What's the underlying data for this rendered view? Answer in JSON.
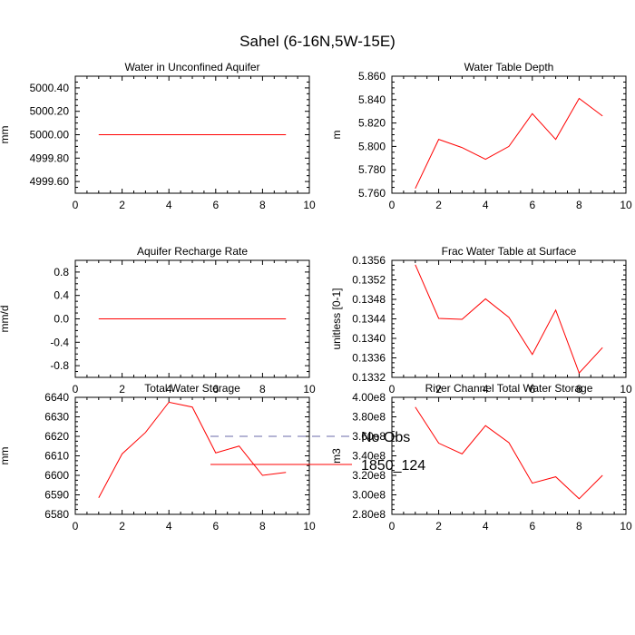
{
  "figure": {
    "title": "Sahel (6-16N,5W-15E)",
    "line_color": "#ff0000",
    "obs_color": "#6a6aa8"
  },
  "legend": {
    "items": [
      {
        "label": "No Obs",
        "style": "dashed",
        "color": "#6a6aa8"
      },
      {
        "label": "1850_124",
        "style": "solid",
        "color": "#ff0000"
      }
    ]
  },
  "chart_data": [
    {
      "type": "line",
      "title": "Water in Unconfined Aquifer",
      "ylabel": "mm",
      "xlim": [
        0,
        10
      ],
      "xticks": [
        0,
        2,
        4,
        6,
        8,
        10
      ],
      "xtick_labels": [
        "0",
        "2",
        "4",
        "6",
        "8",
        "10"
      ],
      "ylim": [
        4999.5,
        5000.5
      ],
      "yticks": [
        4999.6,
        4999.8,
        5000.0,
        5000.2,
        5000.4
      ],
      "ytick_labels": [
        "4999.60",
        "4999.80",
        "5000.00",
        "5000.20",
        "5000.40"
      ],
      "x": [
        1,
        2,
        3,
        4,
        5,
        6,
        7,
        8,
        9
      ],
      "series": [
        {
          "name": "1850_124",
          "values": [
            5000,
            5000,
            5000,
            5000,
            5000,
            5000,
            5000,
            5000,
            5000
          ]
        }
      ]
    },
    {
      "type": "line",
      "title": "Water Table Depth",
      "ylabel": "m",
      "xlim": [
        0,
        10
      ],
      "xticks": [
        0,
        2,
        4,
        6,
        8,
        10
      ],
      "xtick_labels": [
        "0",
        "2",
        "4",
        "6",
        "8",
        "10"
      ],
      "ylim": [
        5.76,
        5.86
      ],
      "yticks": [
        5.76,
        5.78,
        5.8,
        5.82,
        5.84,
        5.86
      ],
      "ytick_labels": [
        "5.760",
        "5.780",
        "5.800",
        "5.820",
        "5.840",
        "5.860"
      ],
      "x": [
        1,
        2,
        3,
        4,
        5,
        6,
        7,
        8,
        9
      ],
      "series": [
        {
          "name": "1850_124",
          "values": [
            5.764,
            5.806,
            5.799,
            5.789,
            5.8,
            5.828,
            5.806,
            5.841,
            5.826
          ]
        }
      ]
    },
    {
      "type": "line",
      "title": "Aquifer Recharge Rate",
      "ylabel": "mm/d",
      "xlim": [
        0,
        10
      ],
      "xticks": [
        0,
        2,
        4,
        6,
        8,
        10
      ],
      "xtick_labels": [
        "0",
        "2",
        "4",
        "6",
        "8",
        "10"
      ],
      "ylim": [
        -1.0,
        1.0
      ],
      "yticks": [
        -0.8,
        -0.4,
        0.0,
        0.4,
        0.8
      ],
      "ytick_labels": [
        "-0.8",
        "-0.4",
        "0.0",
        "0.4",
        "0.8"
      ],
      "x": [
        1,
        2,
        3,
        4,
        5,
        6,
        7,
        8,
        9
      ],
      "series": [
        {
          "name": "1850_124",
          "values": [
            0,
            0,
            0,
            0,
            0,
            0,
            0,
            0,
            0
          ]
        }
      ]
    },
    {
      "type": "line",
      "title": "Frac Water Table at Surface",
      "ylabel": "unitless [0-1]",
      "xlim": [
        0,
        10
      ],
      "xticks": [
        0,
        2,
        4,
        6,
        8,
        10
      ],
      "xtick_labels": [
        "0",
        "2",
        "4",
        "6",
        "8",
        "10"
      ],
      "ylim": [
        0.1332,
        0.1356
      ],
      "yticks": [
        0.1332,
        0.1336,
        0.134,
        0.1344,
        0.1348,
        0.1352,
        0.1356
      ],
      "ytick_labels": [
        "0.1332",
        "0.1336",
        "0.1340",
        "0.1344",
        "0.1348",
        "0.1352",
        "0.1356"
      ],
      "x": [
        1,
        2,
        3,
        4,
        5,
        6,
        7,
        8,
        9
      ],
      "series": [
        {
          "name": "1850_124",
          "values": [
            0.13551,
            0.13441,
            0.13439,
            0.13481,
            0.13443,
            0.13367,
            0.13458,
            0.13329,
            0.13381
          ]
        }
      ]
    },
    {
      "type": "line",
      "title": "Total Water Storage",
      "ylabel": "mm",
      "xlim": [
        0,
        10
      ],
      "xticks": [
        0,
        2,
        4,
        6,
        8,
        10
      ],
      "xtick_labels": [
        "0",
        "2",
        "4",
        "6",
        "8",
        "10"
      ],
      "ylim": [
        6580,
        6640
      ],
      "yticks": [
        6580,
        6590,
        6600,
        6610,
        6620,
        6630,
        6640
      ],
      "ytick_labels": [
        "6580",
        "6590",
        "6600",
        "6610",
        "6620",
        "6630",
        "6640"
      ],
      "x": [
        1,
        2,
        3,
        4,
        5,
        6,
        7,
        8,
        9
      ],
      "series": [
        {
          "name": "1850_124",
          "values": [
            6588.5,
            6611,
            6622,
            6637.5,
            6635,
            6611.5,
            6615,
            6600,
            6601.5
          ]
        }
      ]
    },
    {
      "type": "line",
      "title": "River Channel Total Water Storage",
      "ylabel": "m3",
      "xlim": [
        0,
        10
      ],
      "xticks": [
        0,
        2,
        4,
        6,
        8,
        10
      ],
      "xtick_labels": [
        "0",
        "2",
        "4",
        "6",
        "8",
        "10"
      ],
      "ylim": [
        280000000,
        400000000
      ],
      "yticks": [
        280000000,
        300000000,
        320000000,
        340000000,
        360000000,
        380000000,
        400000000
      ],
      "ytick_labels": [
        "2.80e8",
        "3.00e8",
        "3.20e8",
        "3.40e8",
        "3.60e8",
        "3.80e8",
        "4.00e8"
      ],
      "x": [
        1,
        2,
        3,
        4,
        5,
        6,
        7,
        8,
        9
      ],
      "series": [
        {
          "name": "1850_124",
          "values": [
            390000000,
            353000000,
            342000000,
            371000000,
            353500000,
            312000000,
            318500000,
            296000000,
            320000000
          ]
        }
      ]
    }
  ]
}
